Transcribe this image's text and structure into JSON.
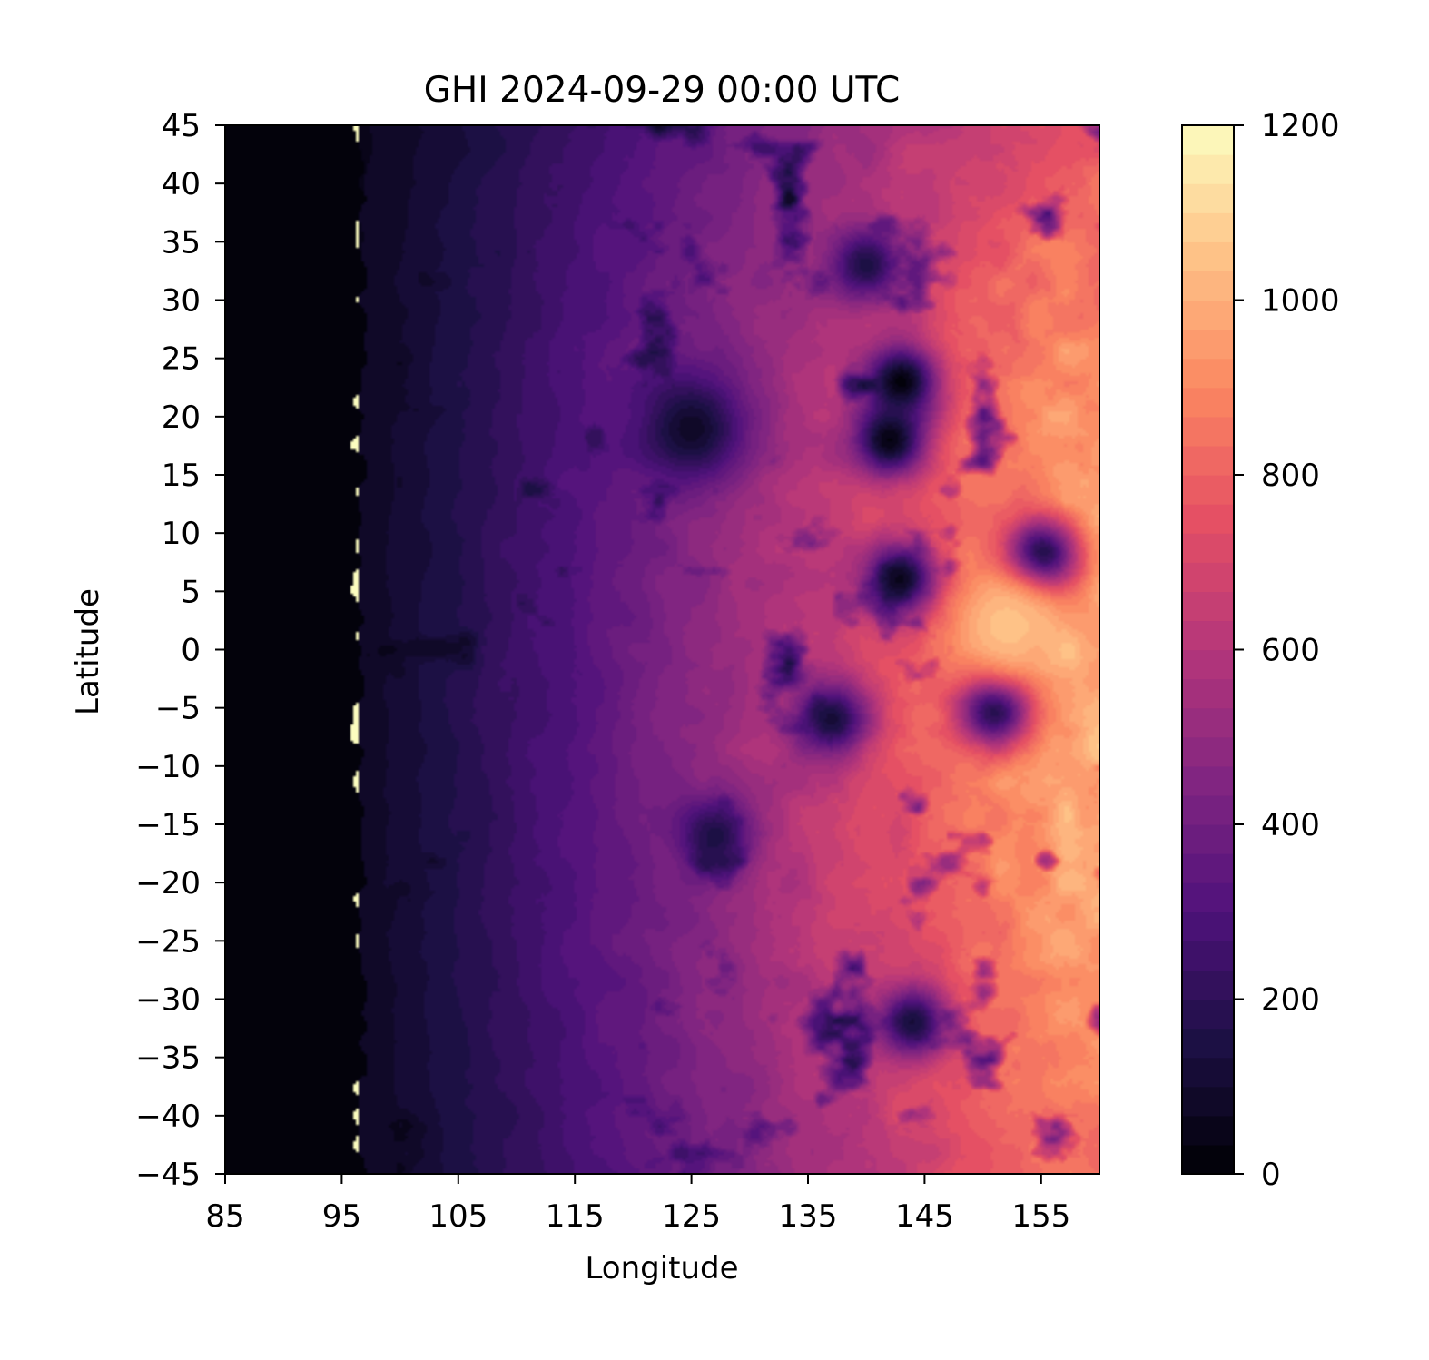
{
  "chart_data": {
    "type": "heatmap",
    "title": "GHI 2024-09-29 00:00 UTC",
    "xlabel": "Longitude",
    "ylabel": "Latitude",
    "xlim": [
      85,
      160
    ],
    "ylim": [
      -45,
      45
    ],
    "x_ticks": [
      85,
      95,
      105,
      115,
      125,
      135,
      145,
      155
    ],
    "y_ticks": [
      45,
      40,
      35,
      30,
      25,
      20,
      15,
      10,
      5,
      0,
      -5,
      -10,
      -15,
      -20,
      -25,
      -30,
      -35,
      -40,
      -45
    ],
    "x_tick_labels": [
      "85",
      "95",
      "105",
      "115",
      "125",
      "135",
      "145",
      "155"
    ],
    "y_tick_labels": [
      "45",
      "40",
      "35",
      "30",
      "25",
      "20",
      "15",
      "10",
      "5",
      "0",
      "−5",
      "−10",
      "−15",
      "−20",
      "−25",
      "−30",
      "−35",
      "−40",
      "−45"
    ],
    "colormap": "magma",
    "colorbar": {
      "range": [
        0,
        1200
      ],
      "ticks": [
        0,
        200,
        400,
        600,
        800,
        1000,
        1200
      ],
      "tick_labels": [
        "0",
        "200",
        "400",
        "600",
        "800",
        "1000",
        "1200"
      ],
      "levels": 36
    },
    "field": {
      "night_edge_lon": 96.5,
      "peak_lon": 157,
      "peak_value": 930,
      "features": [
        {
          "kind": "cyclone",
          "lon": 125,
          "lat": 19,
          "value": 80
        },
        {
          "kind": "cloud",
          "lon": 143,
          "lat": 23,
          "value": 20
        },
        {
          "kind": "cloud",
          "lon": 142,
          "lat": 18,
          "value": 30
        },
        {
          "kind": "cloud",
          "lon": 155,
          "lat": 8,
          "value": 40
        },
        {
          "kind": "cloud",
          "lon": 143,
          "lat": 6,
          "value": 40
        },
        {
          "kind": "cloud",
          "lon": 151,
          "lat": -5,
          "value": 80
        },
        {
          "kind": "cloud",
          "lon": 137,
          "lat": -6,
          "value": 120
        },
        {
          "kind": "cloud",
          "lon": 140,
          "lat": 33,
          "value": 150
        },
        {
          "kind": "cloud",
          "lon": 144,
          "lat": -32,
          "value": 130
        },
        {
          "kind": "cloud",
          "lon": 127,
          "lat": -16,
          "value": 150
        },
        {
          "kind": "bright",
          "lon": 152,
          "lat": 2,
          "value": 1050
        }
      ]
    }
  }
}
